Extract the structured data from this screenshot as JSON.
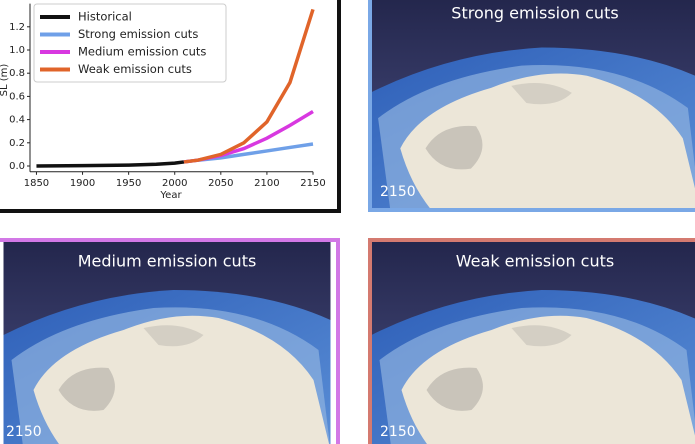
{
  "chart_data": {
    "type": "line",
    "x_label": "Year",
    "y_label": "SL (m)",
    "xlim": [
      1843,
      2150
    ],
    "xticks": [
      1850,
      1900,
      1950,
      2000,
      2050,
      2100,
      2150
    ],
    "ylim": [
      -0.05,
      1.4
    ],
    "yticks": [
      {
        "value": 0,
        "label": "0.0"
      },
      0.2,
      0.4,
      0.6,
      0.8,
      {
        "value": 1,
        "label": "1.0"
      },
      1.2
    ],
    "legend": "upper left",
    "series": [
      {
        "name": "Historical",
        "color": "#111111",
        "x": [
          1850,
          1900,
          1950,
          1980,
          2000,
          2010
        ],
        "values": [
          0,
          0.003,
          0.008,
          0.015,
          0.025,
          0.035
        ]
      },
      {
        "name": "Strong emission cuts",
        "color": "#6fa0e8",
        "x": [
          2010,
          2025,
          2050,
          2075,
          2100,
          2125,
          2150
        ],
        "values": [
          0.035,
          0.05,
          0.07,
          0.1,
          0.13,
          0.16,
          0.19
        ]
      },
      {
        "name": "Medium emission cuts",
        "color": "#d838e0",
        "x": [
          2010,
          2025,
          2050,
          2075,
          2100,
          2125,
          2150
        ],
        "values": [
          0.035,
          0.05,
          0.09,
          0.15,
          0.24,
          0.35,
          0.47
        ]
      },
      {
        "name": "Weak emission cuts",
        "color": "#e0642a",
        "x": [
          2010,
          2025,
          2050,
          2075,
          2100,
          2125,
          2150
        ],
        "values": [
          0.035,
          0.05,
          0.1,
          0.2,
          0.38,
          0.72,
          1.35
        ]
      }
    ]
  },
  "panels": [
    {
      "title": "Strong emission cuts",
      "year": "2150",
      "color": "#7aa8e6"
    },
    {
      "title": "Medium emission cuts",
      "year": "2150",
      "color": "#d278e6"
    },
    {
      "title": "Weak emission cuts",
      "year": "2150",
      "color": "#d47a70"
    }
  ]
}
